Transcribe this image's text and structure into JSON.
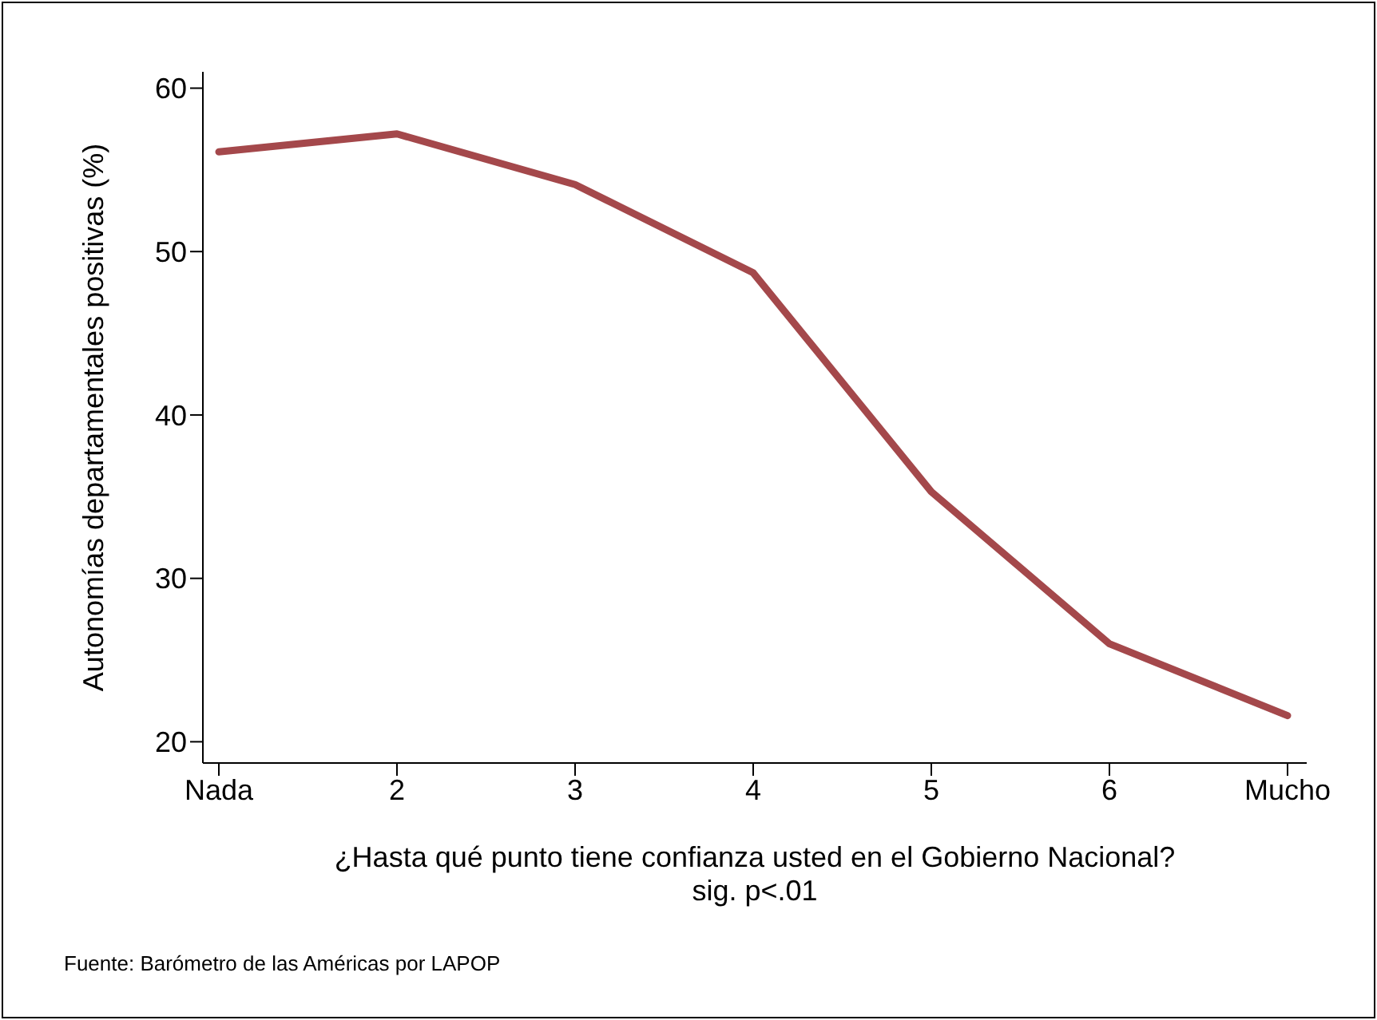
{
  "chart_data": {
    "type": "line",
    "xlabel": "¿Hasta qué punto tiene confianza usted en el Gobierno Nacional?",
    "subtitle": "sig. p<.01",
    "ylabel": "Autonomías departamentales positivas (%)",
    "annotations": [
      "Fuente: Barómetro de las Américas por LAPOP"
    ],
    "categories": [
      "Nada",
      "2",
      "3",
      "4",
      "5",
      "6",
      "Mucho"
    ],
    "series": [
      {
        "color": "#a4484b",
        "values": [
          56.1,
          57.2,
          54.1,
          48.7,
          35.3,
          26,
          21.6
        ]
      }
    ],
    "ylim": [
      18.7,
      61
    ],
    "yticks": [
      20,
      30,
      40,
      50,
      60
    ],
    "marker": "none",
    "line_style": "solid"
  }
}
